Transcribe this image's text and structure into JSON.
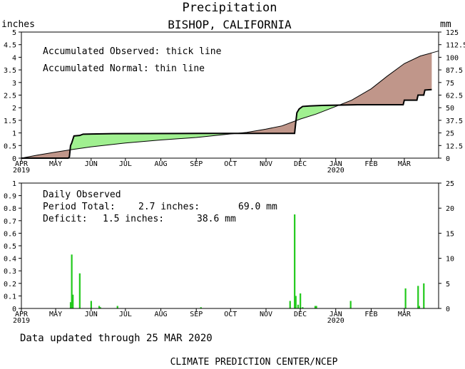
{
  "title": "Precipitation",
  "subtitle": "BISHOP, CALIFORNIA",
  "left_unit": "inches",
  "right_unit": "mm",
  "footer_updated": "Data updated through 25 MAR 2020",
  "footer_credit": "CLIMATE PREDICTION CENTER/NCEP",
  "colors": {
    "observed_above": "#a0f090",
    "observed_below": "#c0968a",
    "daily_bar": "#22c91c",
    "axis": "#000000"
  },
  "chart_data": [
    {
      "type": "area",
      "legend_lines": [
        "Accumulated Observed: thick line",
        "Accumulated Normal: thin line"
      ],
      "y_left_ticks": [
        "0",
        "0.5",
        "1",
        "1.5",
        "2",
        "2.5",
        "3",
        "3.5",
        "4",
        "4.5",
        "5"
      ],
      "y_right_ticks": [
        "0",
        "12.5",
        "25",
        "37.5",
        "50",
        "62.5",
        "75",
        "87.5",
        "100",
        "112.5",
        "125"
      ],
      "ylim": [
        0,
        5
      ],
      "ylim_mm": [
        0,
        125
      ],
      "x_start": "2019-04-01",
      "x_end": "2020-03-31",
      "x_ticks": [
        {
          "date": "2019-04-01",
          "label": "APR",
          "sub": "2019"
        },
        {
          "date": "2019-05-01",
          "label": "MAY",
          "sub": ""
        },
        {
          "date": "2019-06-01",
          "label": "JUN",
          "sub": ""
        },
        {
          "date": "2019-07-01",
          "label": "JUL",
          "sub": ""
        },
        {
          "date": "2019-08-01",
          "label": "AUG",
          "sub": ""
        },
        {
          "date": "2019-09-01",
          "label": "SEP",
          "sub": ""
        },
        {
          "date": "2019-10-01",
          "label": "OCT",
          "sub": ""
        },
        {
          "date": "2019-11-01",
          "label": "NOV",
          "sub": ""
        },
        {
          "date": "2019-12-01",
          "label": "DEC",
          "sub": ""
        },
        {
          "date": "2020-01-01",
          "label": "JAN",
          "sub": "2020"
        },
        {
          "date": "2020-02-01",
          "label": "FEB",
          "sub": ""
        },
        {
          "date": "2020-03-01",
          "label": "MAR",
          "sub": ""
        }
      ],
      "series": [
        {
          "name": "Accumulated Observed",
          "points": [
            [
              "2019-04-01",
              0.0
            ],
            [
              "2019-05-12",
              0.0
            ],
            [
              "2019-05-13",
              0.05
            ],
            [
              "2019-05-14",
              0.5
            ],
            [
              "2019-05-15",
              0.6
            ],
            [
              "2019-05-17",
              0.88
            ],
            [
              "2019-05-22",
              0.9
            ],
            [
              "2019-05-25",
              0.95
            ],
            [
              "2019-06-06",
              0.96
            ],
            [
              "2019-06-20",
              0.97
            ],
            [
              "2019-09-05",
              0.98
            ],
            [
              "2019-11-26",
              0.98
            ],
            [
              "2019-11-27",
              1.4
            ],
            [
              "2019-11-28",
              1.8
            ],
            [
              "2019-11-30",
              1.95
            ],
            [
              "2019-12-03",
              2.05
            ],
            [
              "2019-12-09",
              2.07
            ],
            [
              "2019-12-20",
              2.09
            ],
            [
              "2020-01-02",
              2.1
            ],
            [
              "2020-01-20",
              2.12
            ],
            [
              "2020-02-10",
              2.12
            ],
            [
              "2020-02-29",
              2.12
            ],
            [
              "2020-03-01",
              2.3
            ],
            [
              "2020-03-12",
              2.3
            ],
            [
              "2020-03-13",
              2.5
            ],
            [
              "2020-03-18",
              2.5
            ],
            [
              "2020-03-19",
              2.7
            ],
            [
              "2020-03-25",
              2.72
            ]
          ]
        },
        {
          "name": "Accumulated Normal",
          "points": [
            [
              "2019-04-01",
              0.0
            ],
            [
              "2019-04-15",
              0.12
            ],
            [
              "2019-05-01",
              0.24
            ],
            [
              "2019-05-15",
              0.34
            ],
            [
              "2019-06-01",
              0.45
            ],
            [
              "2019-07-01",
              0.6
            ],
            [
              "2019-08-01",
              0.72
            ],
            [
              "2019-09-01",
              0.82
            ],
            [
              "2019-10-01",
              0.96
            ],
            [
              "2019-10-15",
              1.02
            ],
            [
              "2019-11-01",
              1.15
            ],
            [
              "2019-11-15",
              1.28
            ],
            [
              "2019-12-01",
              1.55
            ],
            [
              "2019-12-15",
              1.75
            ],
            [
              "2020-01-01",
              2.05
            ],
            [
              "2020-01-15",
              2.3
            ],
            [
              "2020-02-01",
              2.75
            ],
            [
              "2020-02-15",
              3.25
            ],
            [
              "2020-03-01",
              3.75
            ],
            [
              "2020-03-15",
              4.05
            ],
            [
              "2020-03-31",
              4.25
            ]
          ]
        }
      ]
    },
    {
      "type": "bar",
      "notes": [
        {
          "label": "Daily Observed"
        },
        {
          "label": "Period Total:",
          "inches": "2.7 inches:",
          "mm": "69.0 mm"
        },
        {
          "label": "Deficit:",
          "inches": "1.5 inches:",
          "mm": "38.6 mm"
        }
      ],
      "y_left_ticks": [
        "0",
        "0.1",
        "0.2",
        "0.3",
        "0.4",
        "0.5",
        "0.6",
        "0.7",
        "0.8",
        "0.9",
        "1"
      ],
      "y_right_ticks": [
        "0",
        "5",
        "10",
        "15",
        "20",
        "25"
      ],
      "ylim": [
        0,
        1
      ],
      "ylim_mm": [
        0,
        25
      ],
      "bars": [
        {
          "date": "2019-05-14",
          "value": 0.05
        },
        {
          "date": "2019-05-15",
          "value": 0.43
        },
        {
          "date": "2019-05-16",
          "value": 0.11
        },
        {
          "date": "2019-05-22",
          "value": 0.28
        },
        {
          "date": "2019-06-01",
          "value": 0.06
        },
        {
          "date": "2019-06-08",
          "value": 0.02
        },
        {
          "date": "2019-06-09",
          "value": 0.01
        },
        {
          "date": "2019-06-24",
          "value": 0.02
        },
        {
          "date": "2019-09-05",
          "value": 0.01
        },
        {
          "date": "2019-11-22",
          "value": 0.06
        },
        {
          "date": "2019-11-26",
          "value": 0.75
        },
        {
          "date": "2019-11-27",
          "value": 0.1
        },
        {
          "date": "2019-11-29",
          "value": 0.03
        },
        {
          "date": "2019-12-01",
          "value": 0.12
        },
        {
          "date": "2019-12-03",
          "value": 0.01
        },
        {
          "date": "2019-12-14",
          "value": 0.02
        },
        {
          "date": "2019-12-15",
          "value": 0.02
        },
        {
          "date": "2020-01-14",
          "value": 0.06
        },
        {
          "date": "2020-03-02",
          "value": 0.16
        },
        {
          "date": "2020-03-13",
          "value": 0.18
        },
        {
          "date": "2020-03-14",
          "value": 0.02
        },
        {
          "date": "2020-03-18",
          "value": 0.2
        }
      ]
    }
  ]
}
